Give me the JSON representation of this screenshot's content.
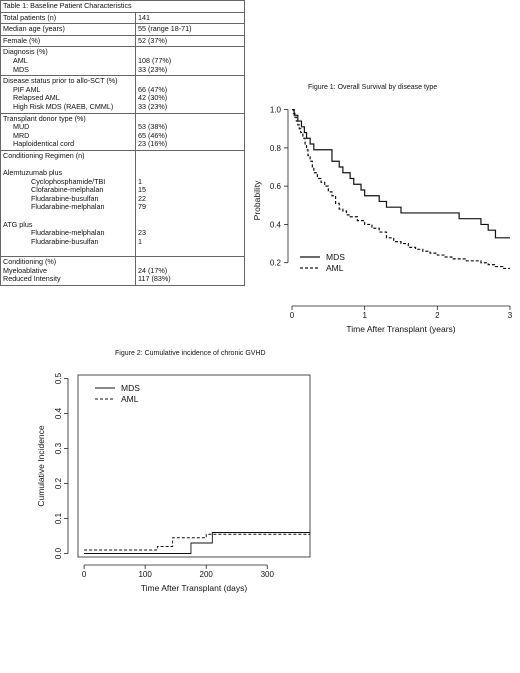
{
  "table": {
    "caption": "Table 1: Baseline Patient Characteristics",
    "rows": [
      {
        "label_lines": [
          {
            "t": "Total patients (n)",
            "i": 0
          }
        ],
        "value_lines": [
          "141"
        ]
      },
      {
        "label_lines": [
          {
            "t": "Median age (years)",
            "i": 0
          }
        ],
        "value_lines": [
          "55 (range 18-71)"
        ]
      },
      {
        "label_lines": [
          {
            "t": "Female (%)",
            "i": 0
          }
        ],
        "value_lines": [
          "52 (37%)"
        ]
      },
      {
        "label_lines": [
          {
            "t": "Diagnosis (%)",
            "i": 0
          },
          {
            "t": "AML",
            "i": 1
          },
          {
            "t": "MDS",
            "i": 1
          }
        ],
        "value_lines": [
          "",
          "108 (77%)",
          "33 (23%)"
        ]
      },
      {
        "label_lines": [
          {
            "t": "Disease status prior to allo-SCT (%)",
            "i": 0
          },
          {
            "t": "PIF AML",
            "i": 1
          },
          {
            "t": "Relapsed AML",
            "i": 1
          },
          {
            "t": "High Risk MDS (RAEB, CMML)",
            "i": 1
          }
        ],
        "value_lines": [
          "",
          "66 (47%)",
          "42 (30%)",
          "33 (23%)"
        ]
      },
      {
        "label_lines": [
          {
            "t": "Transplant donor type (%)",
            "i": 0
          },
          {
            "t": "MUD",
            "i": 1
          },
          {
            "t": "MRD",
            "i": 1
          },
          {
            "t": "Haploidentical cord",
            "i": 1
          }
        ],
        "value_lines": [
          "",
          "53 (38%)",
          "65 (46%)",
          "23 (16%)"
        ]
      },
      {
        "label_lines": [
          {
            "t": "Conditioning Regimen (n)",
            "i": 0
          },
          {
            "t": "",
            "i": 0
          },
          {
            "t": "Alemtuzumab plus",
            "i": 0
          },
          {
            "t": "Cyclophosphamide/TBI",
            "i": 2
          },
          {
            "t": "Clofarabine-melphalan",
            "i": 2
          },
          {
            "t": "Fludarabine-busulfan",
            "i": 2
          },
          {
            "t": "Fludarabine-melphalan",
            "i": 2
          },
          {
            "t": "",
            "i": 0
          },
          {
            "t": "ATG plus",
            "i": 0
          },
          {
            "t": "Fludarabine-melphalan",
            "i": 2
          },
          {
            "t": "Fludarabine-busulfan",
            "i": 2
          },
          {
            "t": "",
            "i": 0
          }
        ],
        "value_lines": [
          "",
          "",
          "",
          "1",
          "15",
          "22",
          "79",
          "",
          "",
          "23",
          "1",
          ""
        ]
      },
      {
        "label_lines": [
          {
            "t": "Conditioning (%)",
            "i": 0
          },
          {
            "t": "Myeloablative",
            "i": 0
          },
          {
            "t": "Reduced Intensity",
            "i": 0
          }
        ],
        "value_lines": [
          "",
          "24 (17%)",
          "117 (83%)"
        ]
      }
    ]
  },
  "chart_data": [
    {
      "type": "line",
      "title": "Figure 1: Overall Survival by disease type",
      "xlabel": "Time After Transplant (years)",
      "ylabel": "Probability",
      "xlim": [
        0,
        3
      ],
      "ylim": [
        0,
        1.05
      ],
      "xticks": [
        0,
        1,
        2,
        3
      ],
      "yticks": [
        0.2,
        0.4,
        0.6,
        0.8,
        1.0
      ],
      "ytick_labels": [
        "0.2",
        "0.4",
        "0.6",
        "0.8",
        "1.0"
      ],
      "legend": "bottom-left",
      "series": [
        {
          "name": "MDS",
          "style": "solid",
          "x": [
            0,
            0.03,
            0.05,
            0.08,
            0.1,
            0.13,
            0.17,
            0.2,
            0.25,
            0.3,
            0.55,
            0.6,
            0.65,
            0.7,
            0.8,
            0.85,
            0.95,
            1.0,
            1.2,
            1.3,
            1.5,
            2.3,
            2.6,
            2.7,
            2.8,
            3.0
          ],
          "y": [
            1.0,
            0.97,
            0.97,
            0.94,
            0.94,
            0.91,
            0.88,
            0.85,
            0.82,
            0.79,
            0.73,
            0.73,
            0.7,
            0.67,
            0.64,
            0.61,
            0.58,
            0.55,
            0.52,
            0.49,
            0.46,
            0.43,
            0.4,
            0.37,
            0.33,
            0.33
          ]
        },
        {
          "name": "AML",
          "style": "dashed",
          "x": [
            0,
            0.02,
            0.04,
            0.06,
            0.08,
            0.1,
            0.12,
            0.15,
            0.18,
            0.2,
            0.22,
            0.25,
            0.28,
            0.3,
            0.35,
            0.4,
            0.45,
            0.5,
            0.55,
            0.6,
            0.65,
            0.7,
            0.75,
            0.8,
            0.9,
            1.0,
            1.1,
            1.2,
            1.3,
            1.4,
            1.5,
            1.6,
            1.7,
            1.8,
            1.9,
            2.0,
            2.1,
            2.2,
            2.4,
            2.6,
            2.7,
            2.8,
            2.9,
            3.0
          ],
          "y": [
            1.0,
            0.98,
            0.96,
            0.94,
            0.92,
            0.9,
            0.88,
            0.85,
            0.82,
            0.79,
            0.76,
            0.73,
            0.7,
            0.67,
            0.64,
            0.62,
            0.6,
            0.57,
            0.55,
            0.51,
            0.48,
            0.47,
            0.45,
            0.44,
            0.42,
            0.4,
            0.38,
            0.36,
            0.33,
            0.31,
            0.3,
            0.28,
            0.27,
            0.26,
            0.25,
            0.24,
            0.23,
            0.22,
            0.21,
            0.2,
            0.19,
            0.18,
            0.17,
            0.17
          ]
        }
      ]
    },
    {
      "type": "line",
      "title": "Figure 2: Cumulative incidence of chronic GVHD",
      "xlabel": "Time After Transplant (days)",
      "ylabel": "Cumulative Incidence",
      "xlim": [
        -10,
        370
      ],
      "ylim": [
        -0.01,
        0.51
      ],
      "xticks": [
        0,
        100,
        200,
        300
      ],
      "yticks": [
        0.0,
        0.1,
        0.2,
        0.3,
        0.4,
        0.5
      ],
      "ytick_labels": [
        "0.0",
        "0.1",
        "0.2",
        "0.3",
        "0.4",
        "0.5"
      ],
      "legend": "top-left",
      "series": [
        {
          "name": "MDS",
          "style": "solid",
          "x": [
            0,
            170,
            175,
            200,
            210,
            370
          ],
          "y": [
            0.0,
            0.0,
            0.03,
            0.03,
            0.06,
            0.06
          ]
        },
        {
          "name": "AML",
          "style": "dashed",
          "x": [
            0,
            115,
            120,
            140,
            145,
            190,
            200,
            370
          ],
          "y": [
            0.01,
            0.01,
            0.02,
            0.02,
            0.045,
            0.045,
            0.055,
            0.055
          ]
        }
      ]
    }
  ]
}
